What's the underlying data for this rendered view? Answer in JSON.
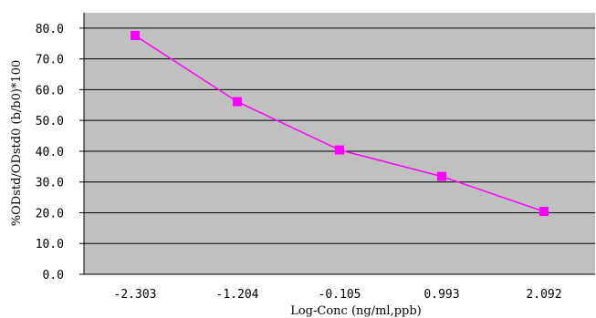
{
  "chart_data": {
    "type": "line",
    "title": "",
    "xlabel": "Log-Conc (ng/ml,ppb)",
    "ylabel": "%ODstd/ODstd0 (b/b0)*100",
    "categories": [
      "-2.303",
      "-1.204",
      "-0.105",
      "0.993",
      "2.092"
    ],
    "series": [
      {
        "values": [
          77.6,
          56.1,
          40.4,
          31.8,
          20.4
        ]
      }
    ],
    "ylim": [
      0,
      85
    ],
    "yticks": [
      0,
      10,
      20,
      30,
      40,
      50,
      60,
      70,
      80
    ],
    "ytick_labels": [
      "0.0",
      "10.0",
      "20.0",
      "30.0",
      "40.0",
      "50.0",
      "60.0",
      "70.0",
      "80.0"
    ],
    "grid": "horizontal",
    "legend": "none",
    "colors": {
      "plot_background": "#c0c0c0",
      "line": "#ff00ff",
      "marker": "#ff00ff",
      "gridline": "#000000"
    }
  }
}
